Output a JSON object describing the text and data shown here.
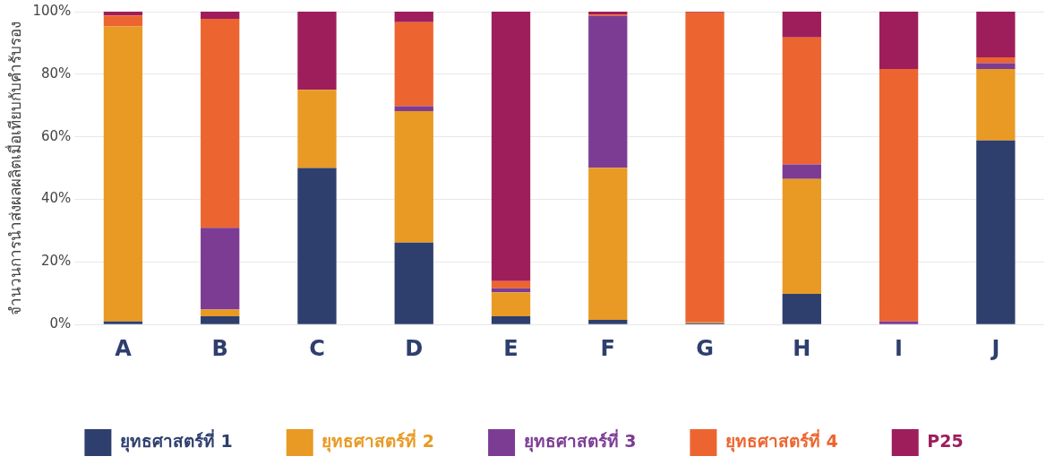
{
  "chart_data": {
    "type": "bar",
    "stacked": true,
    "ylabel": "จำนวนการนำส่งผลผลิตเมื่อเทียบกับคำรับรอง",
    "categories": [
      "A",
      "B",
      "C",
      "D",
      "E",
      "F",
      "G",
      "H",
      "I",
      "J"
    ],
    "series": [
      {
        "name": "ยุทธศาสตร์ที่ 1",
        "color": "#2e3f6e",
        "values": [
          1,
          2.6,
          50,
          26.2,
          2.6,
          1.5,
          0.4,
          9.8,
          0,
          58.8
        ]
      },
      {
        "name": "ยุทธศาสตร์ที่ 2",
        "color": "#e89a24",
        "values": [
          94.3,
          2.2,
          25,
          42,
          7.7,
          48.6,
          0.3,
          36.7,
          0,
          22.9
        ]
      },
      {
        "name": "ยุทธศาสตร์ที่ 3",
        "color": "#7c3c94",
        "values": [
          0,
          26.1,
          0,
          1.6,
          1.3,
          48.5,
          0,
          4.7,
          1,
          1.8
        ]
      },
      {
        "name": "ยุทธศาสตร์ที่ 4",
        "color": "#ec6530",
        "values": [
          3.5,
          66.8,
          0,
          26.8,
          2.3,
          0.4,
          99.1,
          40.6,
          80.7,
          1.9
        ]
      },
      {
        "name": "P25",
        "color": "#9e1e5c",
        "values": [
          1.2,
          2.3,
          25,
          3.4,
          86.1,
          1,
          0.2,
          8.2,
          18.3,
          14.6
        ]
      }
    ],
    "ylim": [
      0,
      100
    ],
    "yticks": [
      {
        "value": 0,
        "label": "0%"
      },
      {
        "value": 20,
        "label": "20%"
      },
      {
        "value": 40,
        "label": "40%"
      },
      {
        "value": 60,
        "label": "60%"
      },
      {
        "value": 80,
        "label": "80%"
      },
      {
        "value": 100,
        "label": "100%"
      }
    ],
    "grid": "y",
    "legend": "bottom"
  }
}
